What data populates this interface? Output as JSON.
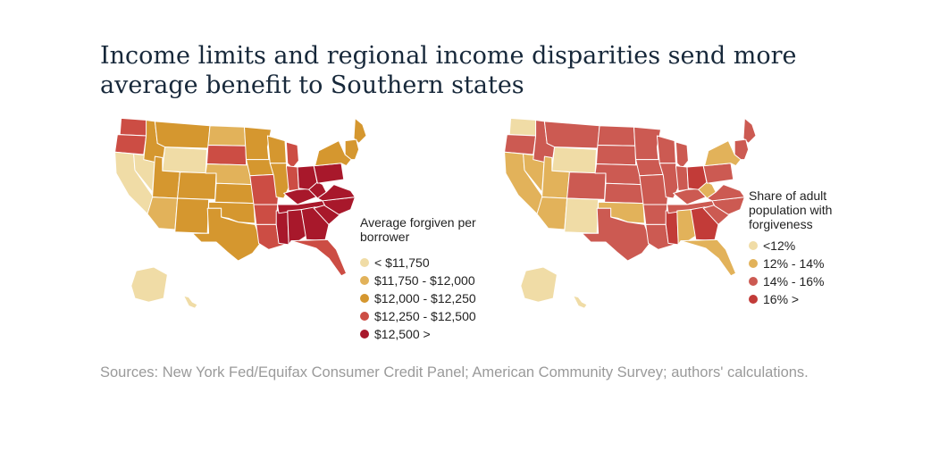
{
  "title": "Income limits and regional income disparities send more average benefit to Southern states",
  "sources": "Sources: New York Fed/Equifax Consumer Credit Panel; American Community Survey; authors' calculations.",
  "maps": [
    {
      "legend_title": "Average forgiven per borrower",
      "legend": [
        {
          "label": "< $11,750",
          "color": "#f0dca6"
        },
        {
          "label": "$11,750 - $12,000",
          "color": "#e2b25a"
        },
        {
          "label": "$12,000 - $12,250",
          "color": "#d5972f"
        },
        {
          "label": "$12,250 - $12,500",
          "color": "#cc4d44"
        },
        {
          "label": "$12,500 >",
          "color": "#a8182b"
        }
      ],
      "states": {
        "WA": 3,
        "OR": 3,
        "CA": 0,
        "NV": 0,
        "ID": 2,
        "MT": 2,
        "WY": 0,
        "UT": 2,
        "AZ": 1,
        "CO": 2,
        "NM": 2,
        "ND": 1,
        "SD": 3,
        "NE": 1,
        "KS": 2,
        "OK": 2,
        "TX": 2,
        "MN": 2,
        "IA": 2,
        "MO": 3,
        "AR": 3,
        "LA": 3,
        "WI": 2,
        "IL": 2,
        "MS": 4,
        "MI": 3,
        "IN": 3,
        "KY": 4,
        "TN": 4,
        "AL": 4,
        "OH": 4,
        "WV": 4,
        "GA": 4,
        "FL": 3,
        "SC": 4,
        "NC": 4,
        "VA": 4,
        "PA": 4,
        "NY": 2,
        "ME": 2,
        "NE_SM": 2,
        "AK": 0,
        "HI": 0
      }
    },
    {
      "legend_title": "Share of adult population with forgiveness",
      "legend": [
        {
          "label": "<12%",
          "color": "#f0dca6"
        },
        {
          "label": "12% - 14%",
          "color": "#e2b25a"
        },
        {
          "label": "14% - 16%",
          "color": "#cc5a52"
        },
        {
          "label": "16% >",
          "color": "#c23b38"
        }
      ],
      "states": {
        "WA": 0,
        "OR": 2,
        "CA": 1,
        "NV": 1,
        "ID": 2,
        "MT": 2,
        "WY": 0,
        "UT": 1,
        "AZ": 1,
        "CO": 2,
        "NM": 0,
        "ND": 2,
        "SD": 2,
        "NE": 2,
        "KS": 2,
        "OK": 1,
        "TX": 2,
        "MN": 2,
        "IA": 2,
        "MO": 2,
        "AR": 2,
        "LA": 2,
        "WI": 2,
        "IL": 2,
        "MS": 3,
        "MI": 2,
        "IN": 2,
        "KY": 2,
        "TN": 2,
        "AL": 1,
        "OH": 3,
        "WV": 1,
        "GA": 3,
        "FL": 1,
        "SC": 2,
        "NC": 2,
        "VA": 2,
        "PA": 2,
        "NY": 1,
        "ME": 2,
        "NE_SM": 2,
        "AK": 0,
        "HI": 0
      }
    }
  ]
}
